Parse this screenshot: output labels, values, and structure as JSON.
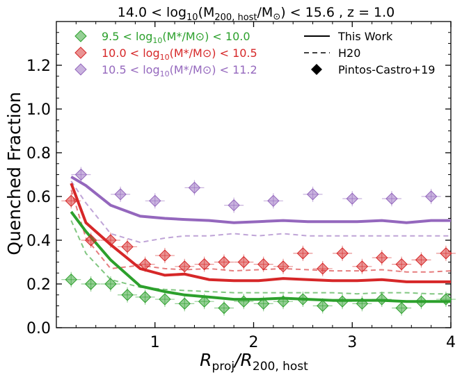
{
  "chart_data": {
    "type": "line",
    "title": "14.0 < log₁₀(M₂₀₀, host/M⊙) < 15.6 , z = 1.0",
    "xlabel": "R_proj/R_200,host",
    "ylabel": "Quenched Fraction",
    "xlim": [
      0.0,
      4.0
    ],
    "ylim": [
      0.0,
      1.4
    ],
    "xticks": [
      1,
      2,
      3,
      4
    ],
    "yticks": [
      0.0,
      0.2,
      0.4,
      0.6,
      0.8,
      1.0,
      1.2
    ],
    "x": [
      0.15,
      0.3,
      0.55,
      0.85,
      1.1,
      1.3,
      1.55,
      1.8,
      2.05,
      2.3,
      2.55,
      2.8,
      3.05,
      3.3,
      3.55,
      3.8,
      4.0
    ],
    "series": [
      {
        "name": "9.5 < log₁₀(M*/M⊙) < 10.0",
        "color": "#2ca02c",
        "this_work": [
          0.53,
          0.44,
          0.31,
          0.19,
          0.165,
          0.15,
          0.14,
          0.13,
          0.13,
          0.135,
          0.13,
          0.125,
          0.125,
          0.125,
          0.12,
          0.12,
          0.12
        ],
        "h20": [
          0.49,
          0.34,
          0.22,
          0.185,
          0.175,
          0.17,
          0.165,
          0.16,
          0.16,
          0.16,
          0.16,
          0.16,
          0.155,
          0.16,
          0.16,
          0.155,
          0.155
        ]
      },
      {
        "name": "10.0 < log₁₀(M*/M⊙) < 10.5",
        "color": "#d62728",
        "this_work": [
          0.66,
          0.48,
          0.38,
          0.27,
          0.24,
          0.245,
          0.22,
          0.215,
          0.215,
          0.225,
          0.22,
          0.215,
          0.215,
          0.22,
          0.21,
          0.21,
          0.21
        ],
        "h20": [
          0.63,
          0.41,
          0.27,
          0.285,
          0.27,
          0.265,
          0.27,
          0.26,
          0.265,
          0.27,
          0.265,
          0.26,
          0.26,
          0.265,
          0.255,
          0.255,
          0.26
        ]
      },
      {
        "name": "10.5 < log₁₀(M*/M⊙) < 11.2",
        "color": "#9467bd",
        "this_work": [
          0.69,
          0.65,
          0.56,
          0.51,
          0.5,
          0.495,
          0.49,
          0.48,
          0.485,
          0.49,
          0.485,
          0.485,
          0.485,
          0.49,
          0.48,
          0.49,
          0.49
        ],
        "h20": [
          0.67,
          0.57,
          0.43,
          0.39,
          0.41,
          0.42,
          0.42,
          0.43,
          0.42,
          0.43,
          0.42,
          0.42,
          0.42,
          0.42,
          0.42,
          0.42,
          0.42
        ]
      }
    ],
    "observations": [
      {
        "series": "9.5 < log₁₀(M*/M⊙) < 10.0",
        "color": "#2ca02c",
        "points": [
          [
            0.15,
            0.22
          ],
          [
            0.35,
            0.2
          ],
          [
            0.55,
            0.2
          ],
          [
            0.72,
            0.15
          ],
          [
            0.9,
            0.14
          ],
          [
            1.1,
            0.13
          ],
          [
            1.3,
            0.11
          ],
          [
            1.5,
            0.12
          ],
          [
            1.7,
            0.09
          ],
          [
            1.9,
            0.12
          ],
          [
            2.1,
            0.11
          ],
          [
            2.3,
            0.12
          ],
          [
            2.5,
            0.13
          ],
          [
            2.7,
            0.1
          ],
          [
            2.9,
            0.12
          ],
          [
            3.1,
            0.11
          ],
          [
            3.3,
            0.13
          ],
          [
            3.5,
            0.09
          ],
          [
            3.7,
            0.12
          ],
          [
            3.95,
            0.13
          ]
        ]
      },
      {
        "series": "10.0 < log₁₀(M*/M⊙) < 10.5",
        "color": "#d62728",
        "points": [
          [
            0.15,
            0.58
          ],
          [
            0.35,
            0.4
          ],
          [
            0.55,
            0.4
          ],
          [
            0.72,
            0.37
          ],
          [
            0.9,
            0.29
          ],
          [
            1.1,
            0.33
          ],
          [
            1.3,
            0.28
          ],
          [
            1.5,
            0.29
          ],
          [
            1.7,
            0.3
          ],
          [
            1.9,
            0.3
          ],
          [
            2.1,
            0.29
          ],
          [
            2.3,
            0.28
          ],
          [
            2.5,
            0.34
          ],
          [
            2.7,
            0.27
          ],
          [
            2.9,
            0.34
          ],
          [
            3.1,
            0.28
          ],
          [
            3.3,
            0.32
          ],
          [
            3.5,
            0.29
          ],
          [
            3.7,
            0.31
          ],
          [
            3.95,
            0.34
          ]
        ]
      },
      {
        "series": "10.5 < log₁₀(M*/M⊙) < 11.2",
        "color": "#9467bd",
        "points": [
          [
            0.25,
            0.7
          ],
          [
            0.65,
            0.61
          ],
          [
            1.0,
            0.58
          ],
          [
            1.4,
            0.64
          ],
          [
            1.8,
            0.56
          ],
          [
            2.2,
            0.58
          ],
          [
            2.6,
            0.61
          ],
          [
            3.0,
            0.59
          ],
          [
            3.4,
            0.59
          ],
          [
            3.8,
            0.6
          ]
        ]
      }
    ],
    "legend_left": {
      "placement": "top-left",
      "entries": [
        {
          "prefix": "9.5 < log",
          "sub": "10",
          "body": "(M*/M⊙) < 10.0",
          "color": "#2ca02c"
        },
        {
          "prefix": "10.0 < log",
          "sub": "10",
          "body": "(M*/M⊙) < 10.5",
          "color": "#d62728"
        },
        {
          "prefix": "10.5 < log",
          "sub": "10",
          "body": "(M*/M⊙) < 11.2",
          "color": "#9467bd"
        }
      ]
    },
    "legend_right": {
      "placement": "top-right",
      "entries": [
        {
          "label": "This Work",
          "style": "solid"
        },
        {
          "label": "H20",
          "style": "dashed"
        },
        {
          "label": "Pintos-Castro+19",
          "style": "diamond"
        }
      ]
    },
    "grid": false
  },
  "title_parts": {
    "lead": "14.0 < log",
    "sub1": "10",
    "open": "(M",
    "sub2": "200, host",
    "mid": "/M",
    "sun": "⊙",
    "tail": ") < 15.6 , z = 1.0"
  },
  "xlabel_parts": {
    "a": "R",
    "asub": "proj",
    "b": "/R",
    "bsub": "200, host"
  }
}
